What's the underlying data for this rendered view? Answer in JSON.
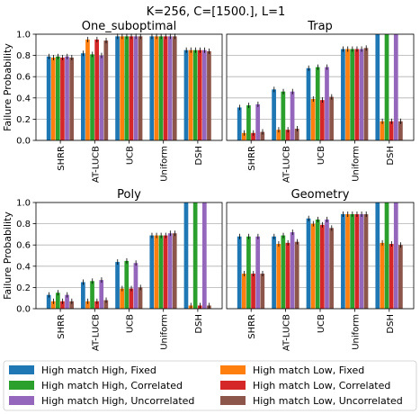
{
  "figure": {
    "suptitle": "K=256, C=[1500.], L=1"
  },
  "legend": {
    "placement": "bottom",
    "entries": [
      {
        "label": "High match High, Fixed",
        "color": "#1f77b4"
      },
      {
        "label": "High match Low, Fixed",
        "color": "#ff7f0e"
      },
      {
        "label": "High match High, Correlated",
        "color": "#2ca02c"
      },
      {
        "label": "High match Low, Correlated",
        "color": "#d62728"
      },
      {
        "label": "High match High, Uncorrelated",
        "color": "#9467bd"
      },
      {
        "label": "High match Low, Uncorrelated",
        "color": "#8c564b"
      }
    ]
  },
  "chart_data": [
    {
      "type": "bar",
      "title": "One_suboptimal",
      "ylabel": "Failure Probability",
      "ylim": [
        0,
        1.0
      ],
      "yticks": [
        "0.0",
        "0.2",
        "0.4",
        "0.6",
        "0.8",
        "1.0"
      ],
      "categories": [
        "SHRR",
        "AT-LUCB",
        "UCB",
        "Uniform",
        "DSH"
      ],
      "series": [
        {
          "name": "High match High, Fixed",
          "values": [
            0.79,
            0.82,
            0.98,
            0.98,
            0.85
          ]
        },
        {
          "name": "High match Low, Fixed",
          "values": [
            0.78,
            0.95,
            0.98,
            0.98,
            0.85
          ]
        },
        {
          "name": "High match High, Correlated",
          "values": [
            0.79,
            0.81,
            0.98,
            0.98,
            0.85
          ]
        },
        {
          "name": "High match Low, Correlated",
          "values": [
            0.78,
            0.95,
            0.98,
            0.98,
            0.85
          ]
        },
        {
          "name": "High match High, Uncorrelated",
          "values": [
            0.79,
            0.8,
            0.98,
            0.98,
            0.85
          ]
        },
        {
          "name": "High match Low, Uncorrelated",
          "values": [
            0.78,
            0.94,
            0.98,
            0.98,
            0.84
          ]
        }
      ],
      "grid": true
    },
    {
      "type": "bar",
      "title": "Trap",
      "ylabel": "",
      "ylim": [
        0,
        1.0
      ],
      "yticks": [],
      "categories": [
        "SHRR",
        "AT-LUCB",
        "UCB",
        "Uniform",
        "DSH"
      ],
      "series": [
        {
          "name": "High match High, Fixed",
          "values": [
            0.31,
            0.48,
            0.68,
            0.86,
            1.0
          ]
        },
        {
          "name": "High match Low, Fixed",
          "values": [
            0.07,
            0.1,
            0.39,
            0.86,
            0.18
          ]
        },
        {
          "name": "High match High, Correlated",
          "values": [
            0.33,
            0.46,
            0.69,
            0.86,
            1.0
          ]
        },
        {
          "name": "High match Low, Correlated",
          "values": [
            0.07,
            0.1,
            0.38,
            0.86,
            0.18
          ]
        },
        {
          "name": "High match High, Uncorrelated",
          "values": [
            0.34,
            0.46,
            0.69,
            0.86,
            1.0
          ]
        },
        {
          "name": "High match Low, Uncorrelated",
          "values": [
            0.08,
            0.11,
            0.41,
            0.87,
            0.18
          ]
        }
      ],
      "grid": true
    },
    {
      "type": "bar",
      "title": "Poly",
      "ylabel": "Failure Probability",
      "ylim": [
        0,
        1.0
      ],
      "yticks": [
        "0.0",
        "0.2",
        "0.4",
        "0.6",
        "0.8",
        "1.0"
      ],
      "categories": [
        "SHRR",
        "AT-LUCB",
        "UCB",
        "Uniform",
        "DSH"
      ],
      "series": [
        {
          "name": "High match High, Fixed",
          "values": [
            0.13,
            0.25,
            0.44,
            0.69,
            1.0
          ]
        },
        {
          "name": "High match Low, Fixed",
          "values": [
            0.07,
            0.07,
            0.19,
            0.69,
            0.03
          ]
        },
        {
          "name": "High match High, Correlated",
          "values": [
            0.15,
            0.26,
            0.45,
            0.69,
            1.0
          ]
        },
        {
          "name": "High match Low, Correlated",
          "values": [
            0.07,
            0.07,
            0.19,
            0.69,
            0.03
          ]
        },
        {
          "name": "High match High, Uncorrelated",
          "values": [
            0.13,
            0.27,
            0.43,
            0.71,
            1.0
          ]
        },
        {
          "name": "High match Low, Uncorrelated",
          "values": [
            0.07,
            0.08,
            0.2,
            0.71,
            0.03
          ]
        }
      ],
      "grid": true
    },
    {
      "type": "bar",
      "title": "Geometry",
      "ylabel": "",
      "ylim": [
        0,
        1.0
      ],
      "yticks": [],
      "categories": [
        "SHRR",
        "AT-LUCB",
        "UCB",
        "Uniform",
        "DSH"
      ],
      "series": [
        {
          "name": "High match High, Fixed",
          "values": [
            0.68,
            0.68,
            0.85,
            0.89,
            1.0
          ]
        },
        {
          "name": "High match Low, Fixed",
          "values": [
            0.33,
            0.61,
            0.8,
            0.89,
            0.62
          ]
        },
        {
          "name": "High match High, Correlated",
          "values": [
            0.68,
            0.69,
            0.84,
            0.89,
            1.0
          ]
        },
        {
          "name": "High match Low, Correlated",
          "values": [
            0.33,
            0.62,
            0.79,
            0.89,
            0.61
          ]
        },
        {
          "name": "High match High, Uncorrelated",
          "values": [
            0.68,
            0.72,
            0.84,
            0.89,
            1.0
          ]
        },
        {
          "name": "High match Low, Uncorrelated",
          "values": [
            0.33,
            0.63,
            0.76,
            0.89,
            0.6
          ]
        }
      ],
      "grid": true
    }
  ]
}
